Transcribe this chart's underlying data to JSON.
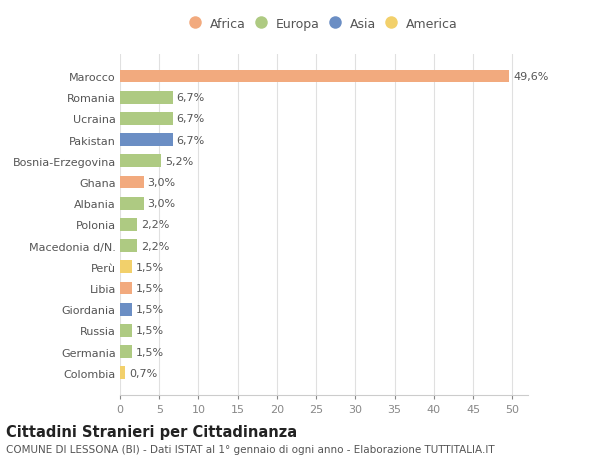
{
  "countries": [
    "Marocco",
    "Romania",
    "Ucraina",
    "Pakistan",
    "Bosnia-Erzegovina",
    "Ghana",
    "Albania",
    "Polonia",
    "Macedonia d/N.",
    "Perù",
    "Libia",
    "Giordania",
    "Russia",
    "Germania",
    "Colombia"
  ],
  "values": [
    49.6,
    6.7,
    6.7,
    6.7,
    5.2,
    3.0,
    3.0,
    2.2,
    2.2,
    1.5,
    1.5,
    1.5,
    1.5,
    1.5,
    0.7
  ],
  "labels": [
    "49,6%",
    "6,7%",
    "6,7%",
    "6,7%",
    "5,2%",
    "3,0%",
    "3,0%",
    "2,2%",
    "2,2%",
    "1,5%",
    "1,5%",
    "1,5%",
    "1,5%",
    "1,5%",
    "0,7%"
  ],
  "continents": [
    "Africa",
    "Europa",
    "Europa",
    "Asia",
    "Europa",
    "Africa",
    "Europa",
    "Europa",
    "Europa",
    "America",
    "Africa",
    "Asia",
    "Europa",
    "Europa",
    "America"
  ],
  "continent_colors": {
    "Africa": "#F2AA7E",
    "Europa": "#AECA82",
    "Asia": "#6B8EC4",
    "America": "#F2D06B"
  },
  "legend_order": [
    "Africa",
    "Europa",
    "Asia",
    "America"
  ],
  "xlim": [
    0,
    52
  ],
  "xticks": [
    0,
    5,
    10,
    15,
    20,
    25,
    30,
    35,
    40,
    45,
    50
  ],
  "title": "Cittadini Stranieri per Cittadinanza",
  "subtitle": "COMUNE DI LESSONA (BI) - Dati ISTAT al 1° gennaio di ogni anno - Elaborazione TUTTITALIA.IT",
  "background_color": "#ffffff",
  "plot_background": "#ffffff",
  "grid_color": "#e0e0e0",
  "bar_height": 0.6,
  "label_fontsize": 8,
  "title_fontsize": 10.5,
  "subtitle_fontsize": 7.5
}
